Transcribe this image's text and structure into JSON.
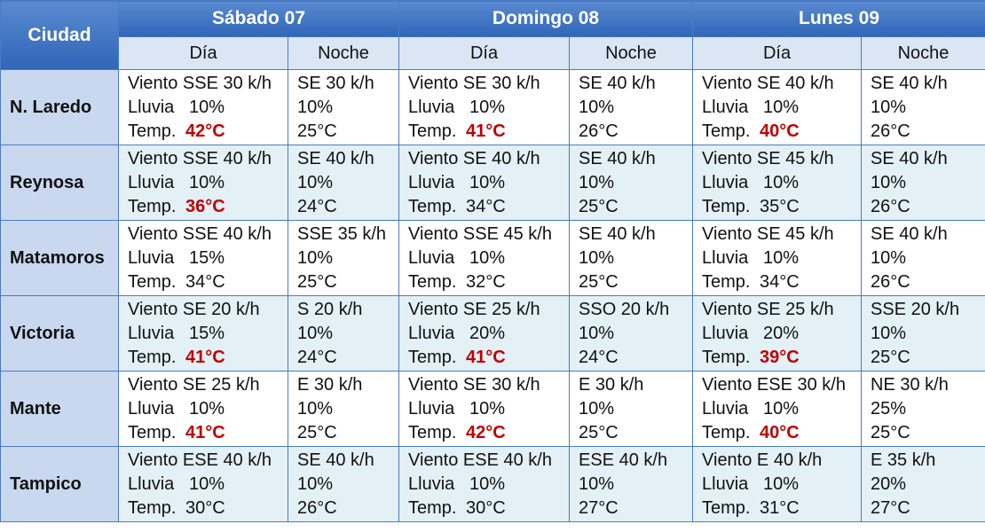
{
  "header": {
    "city": "Ciudad",
    "days": [
      "Sábado 07",
      "Domingo 08",
      "Lunes 09"
    ],
    "day": "Día",
    "night": "Noche"
  },
  "labels": {
    "rain": "Lluvia",
    "temp": "Temp."
  },
  "rows": [
    {
      "city": "N. Laredo",
      "days": [
        {
          "day": {
            "wind": "Viento SSE 30 k/h",
            "rain": "10%",
            "temp": "42°C",
            "hot": true
          },
          "night": {
            "wind": "SE 30 k/h",
            "rain": "10%",
            "temp": "25°C"
          }
        },
        {
          "day": {
            "wind": "Viento SE 30 k/h",
            "rain": "10%",
            "temp": "41°C",
            "hot": true
          },
          "night": {
            "wind": "SE 40 k/h",
            "rain": "10%",
            "temp": "26°C"
          }
        },
        {
          "day": {
            "wind": "Viento SE 40 k/h",
            "rain": "10%",
            "temp": "40°C",
            "hot": true
          },
          "night": {
            "wind": "SE 40 k/h",
            "rain": "10%",
            "temp": "26°C"
          }
        }
      ]
    },
    {
      "city": "Reynosa",
      "days": [
        {
          "day": {
            "wind": "Viento SSE 40 k/h",
            "rain": "10%",
            "temp": "36°C",
            "hot": true
          },
          "night": {
            "wind": "SE 40 k/h",
            "rain": "10%",
            "temp": "24°C"
          }
        },
        {
          "day": {
            "wind": "Viento SE 40 k/h",
            "rain": "10%",
            "temp": "34°C",
            "hot": false
          },
          "night": {
            "wind": "SE 40 k/h",
            "rain": "10%",
            "temp": "25°C"
          }
        },
        {
          "day": {
            "wind": "Viento SE 45 k/h",
            "rain": "10%",
            "temp": "35°C",
            "hot": false
          },
          "night": {
            "wind": "SE 40 k/h",
            "rain": "10%",
            "temp": "26°C"
          }
        }
      ]
    },
    {
      "city": "Matamoros",
      "days": [
        {
          "day": {
            "wind": "Viento SSE 40 k/h",
            "rain": "15%",
            "temp": "34°C",
            "hot": false
          },
          "night": {
            "wind": "SSE 35 k/h",
            "rain": "10%",
            "temp": "25°C"
          }
        },
        {
          "day": {
            "wind": "Viento SSE 45 k/h",
            "rain": "10%",
            "temp": "32°C",
            "hot": false
          },
          "night": {
            "wind": "SE 40 k/h",
            "rain": "10%",
            "temp": "25°C"
          }
        },
        {
          "day": {
            "wind": "Viento SE 45 k/h",
            "rain": "10%",
            "temp": "34°C",
            "hot": false
          },
          "night": {
            "wind": "SE 40 k/h",
            "rain": "10%",
            "temp": "26°C"
          }
        }
      ]
    },
    {
      "city": "Victoria",
      "days": [
        {
          "day": {
            "wind": "Viento SE 20 k/h",
            "rain": "15%",
            "temp": "41°C",
            "hot": true
          },
          "night": {
            "wind": "S 20 k/h",
            "rain": "10%",
            "temp": "24°C"
          }
        },
        {
          "day": {
            "wind": "Viento SE 25 k/h",
            "rain": "20%",
            "temp": "41°C",
            "hot": true
          },
          "night": {
            "wind": "SSO 20 k/h",
            "rain": "10%",
            "temp": "24°C"
          }
        },
        {
          "day": {
            "wind": "Viento SE 25 k/h",
            "rain": "20%",
            "temp": "39°C",
            "hot": true
          },
          "night": {
            "wind": "SSE 20 k/h",
            "rain": "10%",
            "temp": "25°C"
          }
        }
      ]
    },
    {
      "city": "Mante",
      "days": [
        {
          "day": {
            "wind": "Viento SE 25 k/h",
            "rain": "10%",
            "temp": "41°C",
            "hot": true
          },
          "night": {
            "wind": "E 30 k/h",
            "rain": "10%",
            "temp": "25°C"
          }
        },
        {
          "day": {
            "wind": "Viento SE 30 k/h",
            "rain": "10%",
            "temp": "42°C",
            "hot": true
          },
          "night": {
            "wind": "E 30 k/h",
            "rain": "10%",
            "temp": "25°C"
          }
        },
        {
          "day": {
            "wind": "Viento ESE 30 k/h",
            "rain": "10%",
            "temp": "40°C",
            "hot": true
          },
          "night": {
            "wind": "NE 30 k/h",
            "rain": "25%",
            "temp": "25°C"
          }
        }
      ]
    },
    {
      "city": "Tampico",
      "days": [
        {
          "day": {
            "wind": "Viento ESE 40 k/h",
            "rain": "10%",
            "temp": "30°C",
            "hot": false
          },
          "night": {
            "wind": "SE 40 k/h",
            "rain": "10%",
            "temp": "26°C"
          }
        },
        {
          "day": {
            "wind": "Viento ESE 40 k/h",
            "rain": "10%",
            "temp": "30°C",
            "hot": false
          },
          "night": {
            "wind": "ESE 40 k/h",
            "rain": "10%",
            "temp": "27°C"
          }
        },
        {
          "day": {
            "wind": "Viento E 40 k/h",
            "rain": "10%",
            "temp": "31°C",
            "hot": false
          },
          "night": {
            "wind": "E 35 k/h",
            "rain": "20%",
            "temp": "27°C"
          }
        }
      ]
    }
  ]
}
